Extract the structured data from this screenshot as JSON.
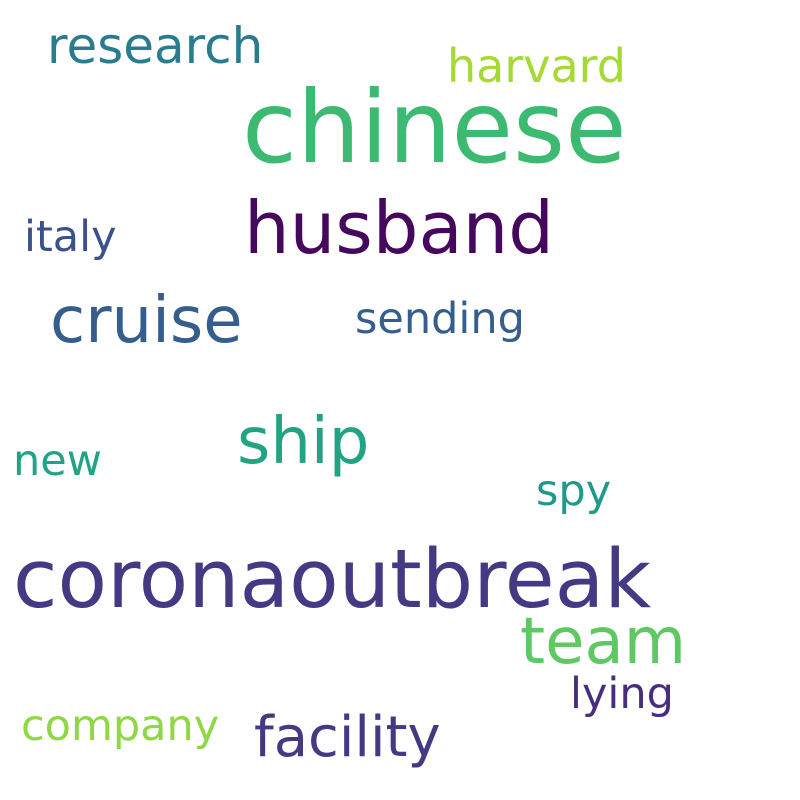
{
  "words": [
    {
      "text": "chinese",
      "color": "#3dba72"
    },
    {
      "text": "coronaoutbreak",
      "color": "#443983"
    },
    {
      "text": "husband",
      "color": "#46085c"
    },
    {
      "text": "cruise",
      "color": "#355e8d"
    },
    {
      "text": "ship",
      "color": "#22a384"
    },
    {
      "text": "team",
      "color": "#5ec962"
    },
    {
      "text": "facility",
      "color": "#443983"
    },
    {
      "text": "research",
      "color": "#287c8e"
    },
    {
      "text": "harvard",
      "color": "#a5da35"
    },
    {
      "text": "sending",
      "color": "#355e8d"
    },
    {
      "text": "italy",
      "color": "#3b518b"
    },
    {
      "text": "new",
      "color": "#20a386"
    },
    {
      "text": "spy",
      "color": "#1f9a8a"
    },
    {
      "text": "company",
      "color": "#8fd744"
    },
    {
      "text": "lying",
      "color": "#472d7b"
    }
  ]
}
